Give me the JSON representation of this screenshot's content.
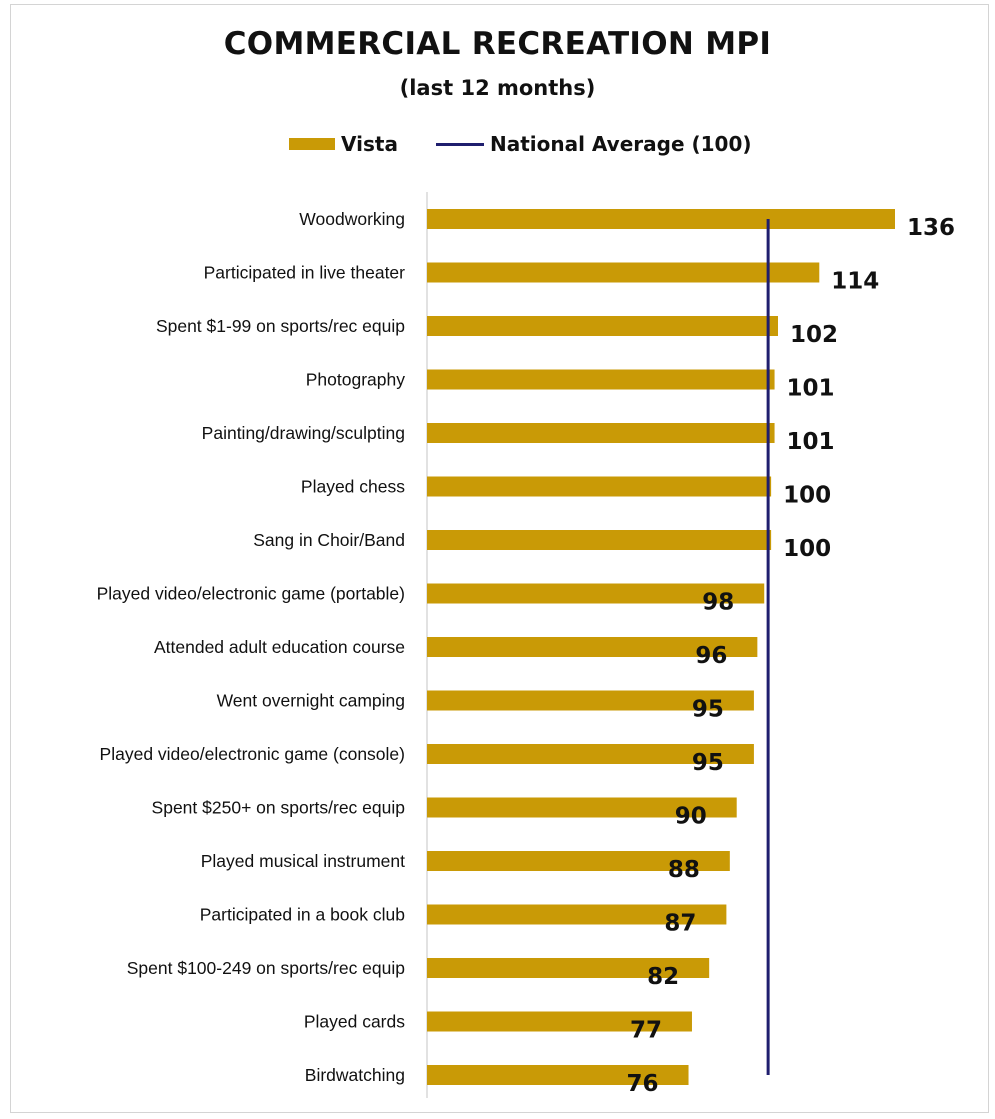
{
  "chart_data": {
    "type": "bar",
    "orientation": "horizontal",
    "title": "COMMERCIAL RECREATION MPI",
    "subtitle": "(last 12 months)",
    "categories": [
      "Woodworking",
      "Participated in live theater",
      "Spent  $1-99 on sports/rec equip",
      "Photography",
      "Painting/drawing/sculpting",
      "Played chess",
      "Sang in Choir/Band",
      "Played video/electronic game (portable)",
      "Attended adult education course",
      "Went overnight camping",
      "Played video/electronic game (console)",
      "Spent  $250+ on sports/rec equip",
      "Played musical instrument",
      "Participated in a book club",
      "Spent $100-249 on sports/rec equip",
      "Played cards",
      "Birdwatching"
    ],
    "series": [
      {
        "name": "Vista",
        "color": "#C99A06",
        "values": [
          136,
          114,
          102,
          101,
          101,
          100,
          100,
          98,
          96,
          95,
          95,
          90,
          88,
          87,
          82,
          77,
          76
        ]
      }
    ],
    "reference_line": {
      "name": "National Average (100)",
      "value": 100,
      "color": "#1f1e6e"
    },
    "xlim": [
      0,
      136
    ],
    "legend": [
      "Vista",
      "National Average (100)"
    ],
    "legend_position": "top",
    "grid": false,
    "data_labels": true
  }
}
